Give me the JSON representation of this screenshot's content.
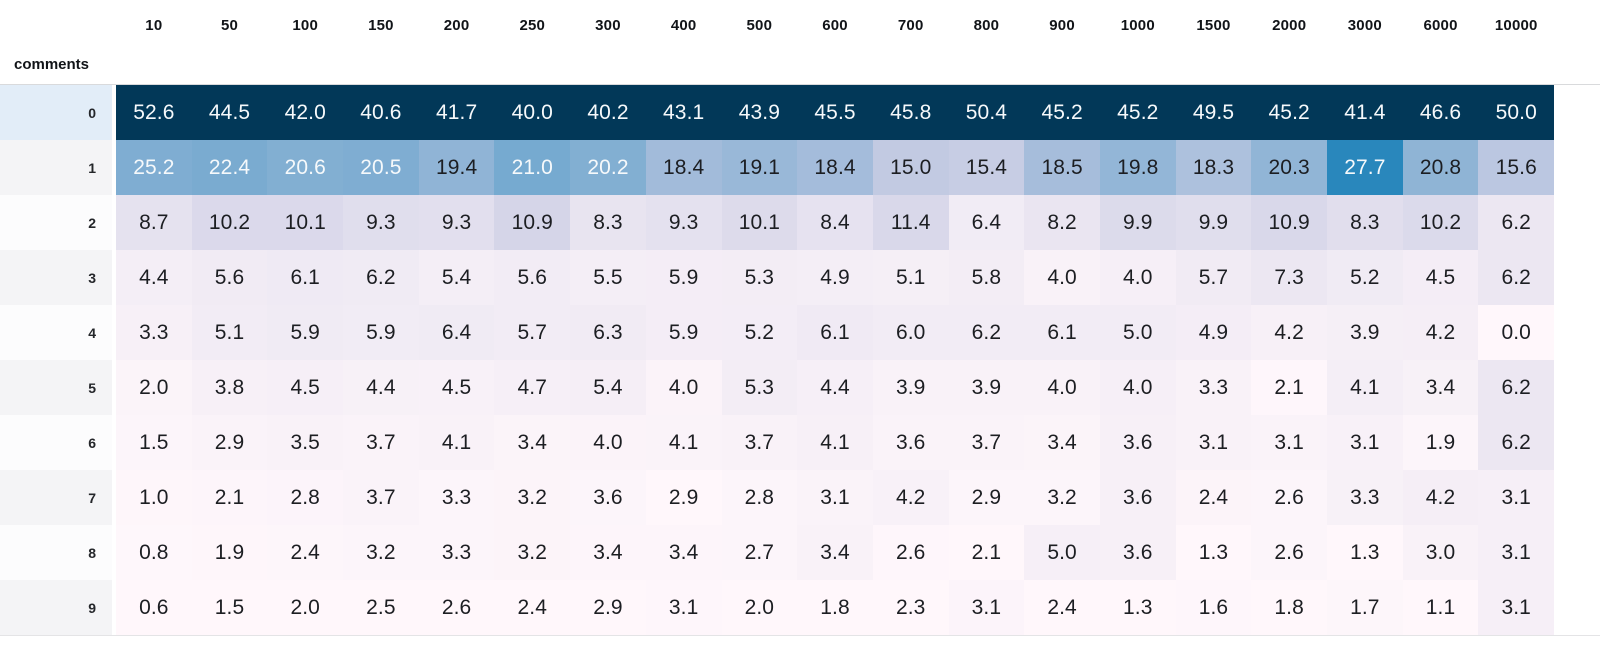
{
  "colors": {
    "dark_text": "#1c1e22",
    "light_text": "#f6f9fb",
    "row0_label_bg": "#e2edf8",
    "stripe_odd_label_bg": "#f4f4f6",
    "stripe_even_label_bg": "#fcfcfd",
    "colormap_low": "#fff7fb",
    "colormap_high": "#023858"
  },
  "chart_data": {
    "type": "heatmap",
    "title": "",
    "y_axis_label": "comments",
    "x_categories": [
      "10",
      "50",
      "100",
      "150",
      "200",
      "250",
      "300",
      "400",
      "500",
      "600",
      "700",
      "800",
      "900",
      "1000",
      "1500",
      "2000",
      "3000",
      "6000",
      "10000"
    ],
    "y_categories": [
      "0",
      "1",
      "2",
      "3",
      "4",
      "5",
      "6",
      "7",
      "8",
      "9"
    ],
    "values": [
      [
        52.6,
        44.5,
        42.0,
        40.6,
        41.7,
        40.0,
        40.2,
        43.1,
        43.9,
        45.5,
        45.8,
        50.4,
        45.2,
        45.2,
        49.5,
        45.2,
        41.4,
        46.6,
        50.0
      ],
      [
        25.2,
        22.4,
        20.6,
        20.5,
        19.4,
        21.0,
        20.2,
        18.4,
        19.1,
        18.4,
        15.0,
        15.4,
        18.5,
        19.8,
        18.3,
        20.3,
        27.7,
        20.8,
        15.6
      ],
      [
        8.7,
        10.2,
        10.1,
        9.3,
        9.3,
        10.9,
        8.3,
        9.3,
        10.1,
        8.4,
        11.4,
        6.4,
        8.2,
        9.9,
        9.9,
        10.9,
        8.3,
        10.2,
        6.2
      ],
      [
        4.4,
        5.6,
        6.1,
        6.2,
        5.4,
        5.6,
        5.5,
        5.9,
        5.3,
        4.9,
        5.1,
        5.8,
        4.0,
        4.0,
        5.7,
        7.3,
        5.2,
        4.5,
        6.2
      ],
      [
        3.3,
        5.1,
        5.9,
        5.9,
        6.4,
        5.7,
        6.3,
        5.9,
        5.2,
        6.1,
        6.0,
        6.2,
        6.1,
        5.0,
        4.9,
        4.2,
        3.9,
        4.2,
        0.0
      ],
      [
        2.0,
        3.8,
        4.5,
        4.4,
        4.5,
        4.7,
        5.4,
        4.0,
        5.3,
        4.4,
        3.9,
        3.9,
        4.0,
        4.0,
        3.3,
        2.1,
        4.1,
        3.4,
        6.2
      ],
      [
        1.5,
        2.9,
        3.5,
        3.7,
        4.1,
        3.4,
        4.0,
        4.1,
        3.7,
        4.1,
        3.6,
        3.7,
        3.4,
        3.6,
        3.1,
        3.1,
        3.1,
        1.9,
        6.2
      ],
      [
        1.0,
        2.1,
        2.8,
        3.7,
        3.3,
        3.2,
        3.6,
        2.9,
        2.8,
        3.1,
        4.2,
        2.9,
        3.2,
        3.6,
        2.4,
        2.6,
        3.3,
        4.2,
        3.1
      ],
      [
        0.8,
        1.9,
        2.4,
        3.2,
        3.3,
        3.2,
        3.4,
        3.4,
        2.7,
        3.4,
        2.6,
        2.1,
        5.0,
        3.6,
        1.3,
        2.6,
        1.3,
        3.0,
        3.1
      ],
      [
        0.6,
        1.5,
        2.0,
        2.5,
        2.6,
        2.4,
        2.9,
        3.1,
        2.0,
        1.8,
        2.3,
        3.1,
        2.4,
        1.3,
        1.6,
        1.8,
        1.7,
        1.1,
        3.1
      ]
    ],
    "colormap": "PuBu",
    "normalization": "per-column min-max",
    "value_format": "1 decimal place",
    "grid": false,
    "legend": false
  }
}
